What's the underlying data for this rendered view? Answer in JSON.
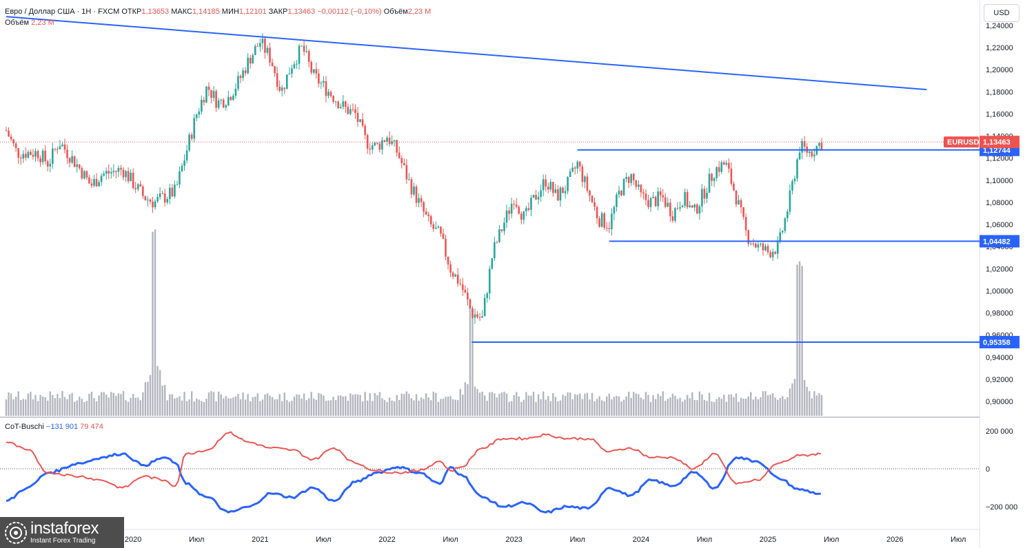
{
  "header": {
    "symbol": "Евро / Доллар США · 1Н · FXCM",
    "open_label": "ОТКР",
    "open_value": "1,13653",
    "high_label": "МАКС",
    "high_value": "1,14185",
    "low_label": "МИН",
    "low_value": "1,12101",
    "close_label": "ЗАКР",
    "close_value": "1,13463",
    "change_value": "−0,00112 (−0,10%)",
    "volume_label": "Объём",
    "volume_value": "2,23 М",
    "volume_row_label": "Объём",
    "volume_row_value": "2,23 М"
  },
  "currency_button": "USD",
  "indicator": {
    "name": "CoT-Buschi",
    "value1": "−131 901",
    "value1_color": "#2962ff",
    "value2": "79 474",
    "value2_color": "#ef5350"
  },
  "colors": {
    "up": "#26a69a",
    "down": "#ef5350",
    "line": "#2962ff",
    "volume": "#b2b5be",
    "price_tag": "#ef5350"
  },
  "logo": {
    "name": "instaforex",
    "sub": "Instant Forex Trading"
  },
  "chart_data": [
    {
      "type": "candlestick",
      "symbol": "EURUSD",
      "timeframe": "1W",
      "x_range": [
        "2019-01",
        "2026-09"
      ],
      "ylim": [
        0.88,
        1.25
      ],
      "y_ticks": [
        "1,24000",
        "1,22000",
        "1,20000",
        "1,18000",
        "1,16000",
        "1,14000",
        "1,12000",
        "1,10000",
        "1,08000",
        "1,06000",
        "1,04000",
        "1,02000",
        "1,00000",
        "0,98000",
        "0,96000",
        "0,94000",
        "0,92000",
        "0,90000"
      ],
      "x_ticks": [
        {
          "t": "2019-07",
          "label": "Июл"
        },
        {
          "t": "2020-01",
          "label": "2020"
        },
        {
          "t": "2020-07",
          "label": "Июл"
        },
        {
          "t": "2021-01",
          "label": "2021"
        },
        {
          "t": "2021-07",
          "label": "Июл"
        },
        {
          "t": "2022-01",
          "label": "2022"
        },
        {
          "t": "2022-07",
          "label": "Июл"
        },
        {
          "t": "2023-01",
          "label": "2023"
        },
        {
          "t": "2023-07",
          "label": "Июл"
        },
        {
          "t": "2024-01",
          "label": "2024"
        },
        {
          "t": "2024-07",
          "label": "Июл"
        },
        {
          "t": "2025-01",
          "label": "2025"
        },
        {
          "t": "2025-07",
          "label": "Июл"
        },
        {
          "t": "2026-01",
          "label": "2026"
        },
        {
          "t": "2026-07",
          "label": "Июл"
        }
      ],
      "price_path": [
        [
          "2019-01",
          1.145
        ],
        [
          "2019-02",
          1.125
        ],
        [
          "2019-04",
          1.125
        ],
        [
          "2019-05",
          1.115
        ],
        [
          "2019-06",
          1.135
        ],
        [
          "2019-08",
          1.11
        ],
        [
          "2019-09",
          1.095
        ],
        [
          "2019-10",
          1.105
        ],
        [
          "2019-12",
          1.11
        ],
        [
          "2020-02",
          1.085
        ],
        [
          "2020-03",
          1.08
        ],
        [
          "2020-04",
          1.085
        ],
        [
          "2020-05",
          1.09
        ],
        [
          "2020-06",
          1.125
        ],
        [
          "2020-07",
          1.16
        ],
        [
          "2020-08",
          1.185
        ],
        [
          "2020-09",
          1.17
        ],
        [
          "2020-10",
          1.175
        ],
        [
          "2020-11",
          1.19
        ],
        [
          "2020-12",
          1.21
        ],
        [
          "2021-01",
          1.225
        ],
        [
          "2021-02",
          1.21
        ],
        [
          "2021-03",
          1.18
        ],
        [
          "2021-04",
          1.205
        ],
        [
          "2021-05",
          1.22
        ],
        [
          "2021-06",
          1.195
        ],
        [
          "2021-07",
          1.185
        ],
        [
          "2021-08",
          1.175
        ],
        [
          "2021-09",
          1.165
        ],
        [
          "2021-10",
          1.16
        ],
        [
          "2021-11",
          1.135
        ],
        [
          "2021-12",
          1.13
        ],
        [
          "2022-01",
          1.14
        ],
        [
          "2022-02",
          1.125
        ],
        [
          "2022-03",
          1.1
        ],
        [
          "2022-04",
          1.08
        ],
        [
          "2022-05",
          1.06
        ],
        [
          "2022-06",
          1.05
        ],
        [
          "2022-07",
          1.02
        ],
        [
          "2022-08",
          1.005
        ],
        [
          "2022-09",
          0.98
        ],
        [
          "2022-10",
          0.975
        ],
        [
          "2022-11",
          1.035
        ],
        [
          "2022-12",
          1.06
        ],
        [
          "2023-01",
          1.085
        ],
        [
          "2023-02",
          1.065
        ],
        [
          "2023-03",
          1.085
        ],
        [
          "2023-04",
          1.1
        ],
        [
          "2023-05",
          1.085
        ],
        [
          "2023-06",
          1.095
        ],
        [
          "2023-07",
          1.115
        ],
        [
          "2023-08",
          1.09
        ],
        [
          "2023-09",
          1.065
        ],
        [
          "2023-10",
          1.06
        ],
        [
          "2023-11",
          1.09
        ],
        [
          "2023-12",
          1.105
        ],
        [
          "2024-01",
          1.085
        ],
        [
          "2024-02",
          1.08
        ],
        [
          "2024-03",
          1.085
        ],
        [
          "2024-04",
          1.07
        ],
        [
          "2024-05",
          1.085
        ],
        [
          "2024-06",
          1.07
        ],
        [
          "2024-07",
          1.09
        ],
        [
          "2024-08",
          1.11
        ],
        [
          "2024-09",
          1.115
        ],
        [
          "2024-10",
          1.085
        ],
        [
          "2024-11",
          1.05
        ],
        [
          "2024-12",
          1.04
        ],
        [
          "2025-01",
          1.035
        ],
        [
          "2025-02",
          1.04
        ],
        [
          "2025-03",
          1.08
        ],
        [
          "2025-04",
          1.13
        ],
        [
          "2025-05",
          1.125
        ],
        [
          "2025-06",
          1.134
        ]
      ],
      "volume_spikes": [
        {
          "t": "2020-03",
          "v": 1.9
        },
        {
          "t": "2022-09",
          "v": 1.0
        },
        {
          "t": "2025-04",
          "v": 1.5
        }
      ],
      "lines": [
        {
          "kind": "trendline",
          "from": [
            "2019-01",
            1.248
          ],
          "to": [
            "2026-04",
            1.182
          ]
        },
        {
          "kind": "level",
          "from": "2023-07",
          "to": "2026-09",
          "y": 1.12744,
          "label": "1,12744"
        },
        {
          "kind": "level",
          "from": "2023-10",
          "to": "2026-09",
          "y": 1.04482,
          "label": "1,04482"
        },
        {
          "kind": "level",
          "from": "2022-09",
          "to": "2026-09",
          "y": 0.95358,
          "label": "0,95358"
        }
      ],
      "current": {
        "label": "EURUSD",
        "value": 1.13463,
        "text": "1,13463"
      }
    },
    {
      "type": "line",
      "name": "CoT-Buschi",
      "ylim": [
        -260000,
        240000
      ],
      "y_ticks": [
        {
          "v": 200000,
          "label": "200 000"
        },
        {
          "v": 0,
          "label": "0"
        },
        {
          "v": -200000,
          "label": "−200 000"
        }
      ],
      "series": [
        {
          "color": "#2962ff",
          "points": [
            [
              "2019-01",
              -170000
            ],
            [
              "2019-03",
              -100000
            ],
            [
              "2019-05",
              -20000
            ],
            [
              "2019-08",
              30000
            ],
            [
              "2019-10",
              60000
            ],
            [
              "2019-12",
              80000
            ],
            [
              "2020-02",
              20000
            ],
            [
              "2020-04",
              60000
            ],
            [
              "2020-05",
              30000
            ],
            [
              "2020-06",
              -80000
            ],
            [
              "2020-08",
              -150000
            ],
            [
              "2020-10",
              -230000
            ],
            [
              "2020-12",
              -200000
            ],
            [
              "2021-02",
              -130000
            ],
            [
              "2021-04",
              -150000
            ],
            [
              "2021-06",
              -100000
            ],
            [
              "2021-08",
              -170000
            ],
            [
              "2021-10",
              -70000
            ],
            [
              "2021-12",
              -20000
            ],
            [
              "2022-02",
              10000
            ],
            [
              "2022-04",
              -20000
            ],
            [
              "2022-06",
              -80000
            ],
            [
              "2022-07",
              10000
            ],
            [
              "2022-08",
              -30000
            ],
            [
              "2022-10",
              -150000
            ],
            [
              "2022-12",
              -200000
            ],
            [
              "2023-02",
              -180000
            ],
            [
              "2023-04",
              -230000
            ],
            [
              "2023-06",
              -200000
            ],
            [
              "2023-08",
              -210000
            ],
            [
              "2023-10",
              -100000
            ],
            [
              "2023-12",
              -140000
            ],
            [
              "2024-02",
              -60000
            ],
            [
              "2024-04",
              -90000
            ],
            [
              "2024-06",
              -20000
            ],
            [
              "2024-08",
              -100000
            ],
            [
              "2024-10",
              60000
            ],
            [
              "2024-12",
              40000
            ],
            [
              "2025-02",
              -50000
            ],
            [
              "2025-04",
              -110000
            ],
            [
              "2025-06",
              -131901
            ]
          ]
        },
        {
          "color": "#ef5350",
          "points": [
            [
              "2019-01",
              140000
            ],
            [
              "2019-03",
              100000
            ],
            [
              "2019-05",
              -20000
            ],
            [
              "2019-08",
              -40000
            ],
            [
              "2019-10",
              -60000
            ],
            [
              "2019-12",
              -100000
            ],
            [
              "2020-02",
              -40000
            ],
            [
              "2020-04",
              -60000
            ],
            [
              "2020-05",
              -90000
            ],
            [
              "2020-06",
              80000
            ],
            [
              "2020-08",
              100000
            ],
            [
              "2020-10",
              190000
            ],
            [
              "2020-12",
              140000
            ],
            [
              "2021-02",
              110000
            ],
            [
              "2021-04",
              100000
            ],
            [
              "2021-06",
              50000
            ],
            [
              "2021-08",
              110000
            ],
            [
              "2021-10",
              30000
            ],
            [
              "2021-12",
              -10000
            ],
            [
              "2022-02",
              -20000
            ],
            [
              "2022-04",
              -10000
            ],
            [
              "2022-06",
              40000
            ],
            [
              "2022-07",
              -10000
            ],
            [
              "2022-08",
              10000
            ],
            [
              "2022-10",
              110000
            ],
            [
              "2022-12",
              160000
            ],
            [
              "2023-02",
              160000
            ],
            [
              "2023-04",
              180000
            ],
            [
              "2023-06",
              160000
            ],
            [
              "2023-08",
              160000
            ],
            [
              "2023-10",
              90000
            ],
            [
              "2023-12",
              110000
            ],
            [
              "2024-02",
              60000
            ],
            [
              "2024-04",
              60000
            ],
            [
              "2024-06",
              0
            ],
            [
              "2024-08",
              80000
            ],
            [
              "2024-10",
              -80000
            ],
            [
              "2024-12",
              -60000
            ],
            [
              "2025-02",
              30000
            ],
            [
              "2025-04",
              70000
            ],
            [
              "2025-06",
              79474
            ]
          ]
        }
      ]
    }
  ]
}
